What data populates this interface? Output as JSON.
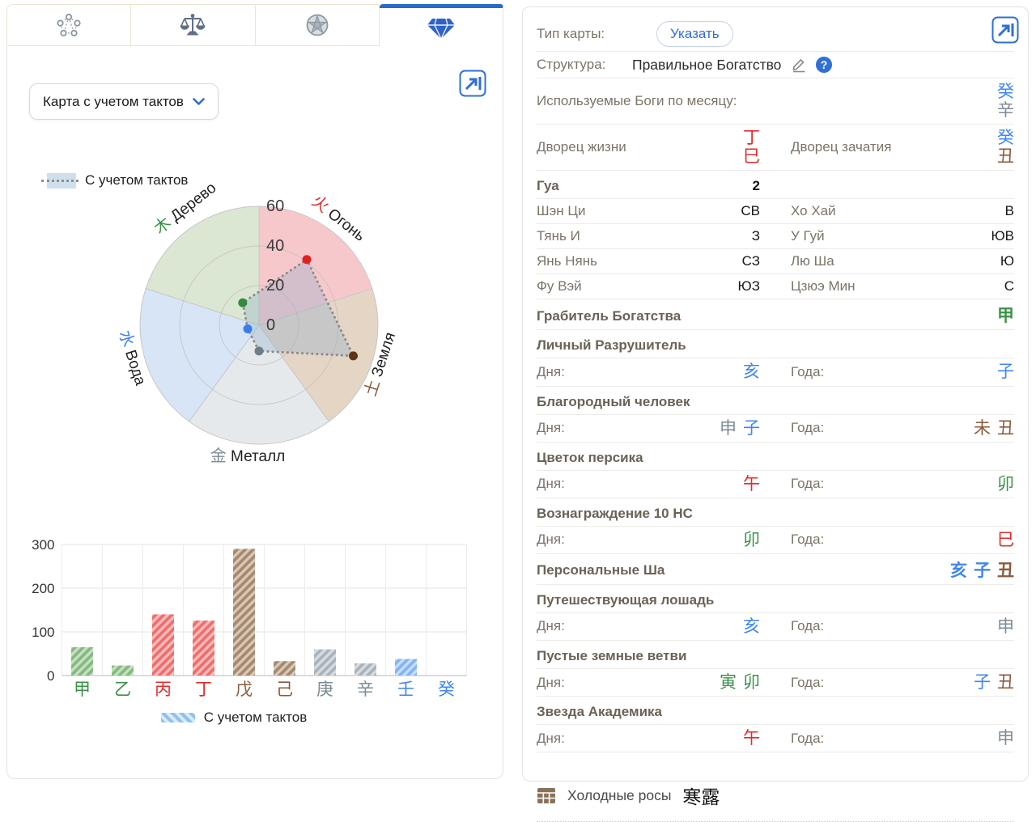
{
  "palette": {
    "wood": "#3a9246",
    "fire": "#e02b2b",
    "earth": "#8a5a3b",
    "metal": "#7d8b96",
    "water": "#3f86ef",
    "accent": "#2a6bc9",
    "dot_wood": "#338a3e",
    "dot_fire": "#e02020",
    "dot_earth": "#5f3517",
    "dot_metal": "#707d89",
    "dot_water": "#3b7de8",
    "sector_wood": "#dbe7d2",
    "sector_fire": "#f6c8cc",
    "sector_earth": "#e4d5c5",
    "sector_metal": "#e6e9eb",
    "sector_water": "#d7e5f6",
    "bar_wood": "#85ba80",
    "bar_fire": "#ef6e6e",
    "bar_earth": "#a7896c",
    "bar_metal": "#a9b3bb",
    "bar_water": "#84b5f0"
  },
  "tabs": {
    "items": [
      {
        "icon": "five-elements-network-icon",
        "active": false
      },
      {
        "icon": "scales-icon",
        "active": false
      },
      {
        "icon": "pie-star-icon",
        "active": false
      },
      {
        "icon": "diamond-icon",
        "active": true
      }
    ]
  },
  "left_panel": {
    "selector_label": "Карта с учетом тактов"
  },
  "chart_data": [
    {
      "type": "radar",
      "legend": "С учетом тактов",
      "legend_position": "top-left",
      "categories": [
        "Огонь",
        "Земля",
        "Металл",
        "Вода",
        "Дерево"
      ],
      "hanzi": [
        "火",
        "土",
        "金",
        "水",
        "木"
      ],
      "element_keys": [
        "fire",
        "earth",
        "metal",
        "water",
        "wood"
      ],
      "values": [
        41,
        50,
        13,
        6,
        14
      ],
      "rlim": [
        0,
        60
      ],
      "rticks": [
        0,
        20,
        40,
        60
      ]
    },
    {
      "type": "bar",
      "legend": "С учетом тактов",
      "categories": [
        "甲",
        "乙",
        "丙",
        "丁",
        "戊",
        "己",
        "庚",
        "辛",
        "壬",
        "癸"
      ],
      "category_elements": [
        "wood",
        "wood",
        "fire",
        "fire",
        "earth",
        "earth",
        "metal",
        "metal",
        "water",
        "water"
      ],
      "values": [
        65,
        23,
        140,
        126,
        290,
        33,
        60,
        28,
        38,
        0
      ],
      "ylim": [
        0,
        300
      ],
      "yticks": [
        0,
        100,
        200,
        300
      ],
      "grid": true
    }
  ],
  "right_panel": {
    "rows": [
      {
        "t": "button-row",
        "label": "Тип карты:",
        "button": "Указать"
      },
      {
        "t": "edit-row",
        "label": "Структура:",
        "value": "Правильное Богатство",
        "icons": [
          "pencil-icon",
          "help-icon"
        ]
      },
      {
        "t": "stems-row",
        "label": "Используемые Боги по месяцу:",
        "stack": true,
        "right": [
          [
            "癸",
            "water"
          ],
          [
            "辛",
            "metal"
          ]
        ]
      },
      {
        "t": "pair-stems",
        "stack": true,
        "cells": [
          {
            "label": "Дворец жизни",
            "stems": [
              [
                "丁",
                "fire"
              ],
              [
                "巳",
                "fire"
              ]
            ]
          },
          {
            "label": "Дворец зачатия",
            "stems": [
              [
                "癸",
                "water"
              ],
              [
                "丑",
                "earth"
              ]
            ]
          }
        ]
      },
      {
        "t": "pair",
        "bold": true,
        "cells": [
          {
            "label": "Гуа",
            "value": "2"
          },
          {
            "label": "",
            "value": ""
          }
        ]
      },
      {
        "t": "pair",
        "cells": [
          {
            "label": "Шэн Ци",
            "value": "СВ"
          },
          {
            "label": "Хо Хай",
            "value": "В"
          }
        ]
      },
      {
        "t": "pair",
        "cells": [
          {
            "label": "Тянь И",
            "value": "З"
          },
          {
            "label": "У Гуй",
            "value": "ЮВ"
          }
        ]
      },
      {
        "t": "pair",
        "cells": [
          {
            "label": "Янь Нянь",
            "value": "СЗ"
          },
          {
            "label": "Лю Ша",
            "value": "Ю"
          }
        ]
      },
      {
        "t": "pair",
        "cells": [
          {
            "label": "Фу Вэй",
            "value": "ЮЗ"
          },
          {
            "label": "Цзюэ Мин",
            "value": "С"
          }
        ]
      },
      {
        "t": "stems-row",
        "label": "Грабитель Богатства",
        "bold": true,
        "right": [
          [
            "甲",
            "wood"
          ]
        ]
      },
      {
        "t": "header",
        "label": "Личный Разрушитель"
      },
      {
        "t": "pair-stems",
        "cells": [
          {
            "label": "Дня:",
            "stems": [
              [
                "亥",
                "water"
              ]
            ]
          },
          {
            "label": "Года:",
            "stems": [
              [
                "子",
                "water"
              ]
            ]
          }
        ]
      },
      {
        "t": "header",
        "label": "Благородный человек"
      },
      {
        "t": "pair-stems",
        "cells": [
          {
            "label": "Дня:",
            "stems": [
              [
                "申",
                "metal"
              ],
              [
                "子",
                "water"
              ]
            ]
          },
          {
            "label": "Года:",
            "stems": [
              [
                "未",
                "earth"
              ],
              [
                "丑",
                "earth"
              ]
            ]
          }
        ]
      },
      {
        "t": "header",
        "label": "Цветок персика"
      },
      {
        "t": "pair-stems",
        "cells": [
          {
            "label": "Дня:",
            "stems": [
              [
                "午",
                "fire"
              ]
            ]
          },
          {
            "label": "Года:",
            "stems": [
              [
                "卯",
                "wood"
              ]
            ]
          }
        ]
      },
      {
        "t": "header",
        "label": "Вознаграждение 10 НС"
      },
      {
        "t": "pair-stems",
        "cells": [
          {
            "label": "Дня:",
            "stems": [
              [
                "卯",
                "wood"
              ]
            ]
          },
          {
            "label": "Года:",
            "stems": [
              [
                "巳",
                "fire"
              ]
            ]
          }
        ]
      },
      {
        "t": "stems-row",
        "label": "Персональные Ша",
        "bold": true,
        "right": [
          [
            "亥",
            "water"
          ],
          [
            "子",
            "water"
          ],
          [
            "丑",
            "earth"
          ]
        ]
      },
      {
        "t": "header",
        "label": "Путешествующая лошадь"
      },
      {
        "t": "pair-stems",
        "cells": [
          {
            "label": "Дня:",
            "stems": [
              [
                "亥",
                "water"
              ]
            ]
          },
          {
            "label": "Года:",
            "stems": [
              [
                "申",
                "metal"
              ]
            ]
          }
        ]
      },
      {
        "t": "header",
        "label": "Пустые земные ветви"
      },
      {
        "t": "pair-stems",
        "cells": [
          {
            "label": "Дня:",
            "stems": [
              [
                "寅",
                "wood"
              ],
              [
                "卯",
                "wood"
              ]
            ]
          },
          {
            "label": "Года:",
            "stems": [
              [
                "子",
                "water"
              ],
              [
                "丑",
                "earth"
              ]
            ]
          }
        ]
      },
      {
        "t": "header",
        "label": "Звезда Академика"
      },
      {
        "t": "pair-stems",
        "cells": [
          {
            "label": "Дня:",
            "stems": [
              [
                "午",
                "fire"
              ]
            ]
          },
          {
            "label": "Года:",
            "stems": [
              [
                "申",
                "metal"
              ]
            ]
          }
        ]
      }
    ],
    "footer": {
      "icon": "calendar-grid-icon",
      "label": "Холодные росы",
      "hanzi": "寒露"
    }
  }
}
